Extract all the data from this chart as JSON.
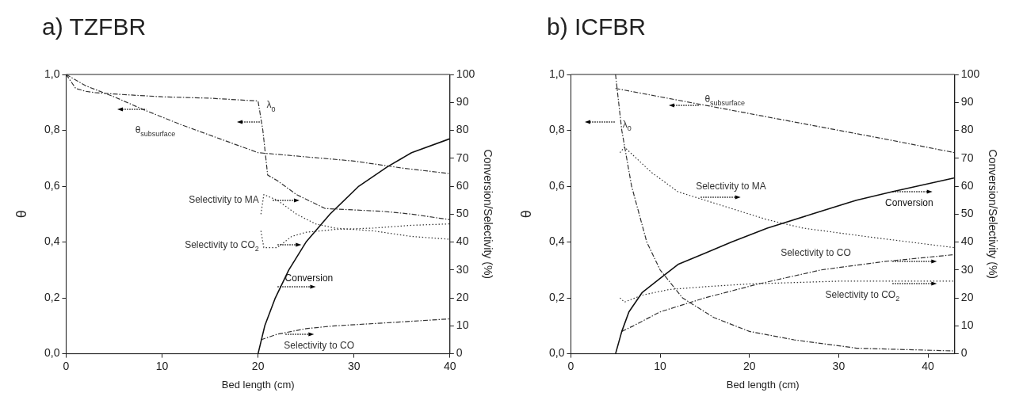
{
  "chart_data": [
    {
      "type": "line",
      "title": "a) TZFBR",
      "xlabel": "Bed length (cm)",
      "ylabel": "θ",
      "y2label": "Conversion/Selectivity (%)",
      "xlim": [
        0,
        40
      ],
      "xticks": [
        0,
        10,
        20,
        30,
        40
      ],
      "ylim": [
        0,
        1
      ],
      "yticks": [
        {
          "value": 0,
          "label": "0,0"
        },
        {
          "value": 0.2,
          "label": "0,2"
        },
        {
          "value": 0.4,
          "label": "0,4"
        },
        {
          "value": 0.6,
          "label": "0,6"
        },
        {
          "value": 0.8,
          "label": "0,8"
        },
        {
          "value": 1,
          "label": "1,0"
        }
      ],
      "y2lim": [
        0,
        100
      ],
      "y2ticks": [
        0,
        10,
        20,
        30,
        40,
        50,
        60,
        70,
        80,
        90,
        100
      ],
      "grid": false,
      "legend": false,
      "marker": "none",
      "series": [
        {
          "name": "θ$_{subsurface}$",
          "color": "#333333",
          "line_style": "dashed",
          "x": [
            0,
            2,
            5,
            8,
            12,
            16,
            20,
            25,
            30,
            35,
            40
          ],
          "values": [
            1.0,
            0.96,
            0.92,
            0.875,
            0.82,
            0.77,
            0.72,
            0.705,
            0.69,
            0.665,
            0.645
          ]
        },
        {
          "name": "λ$_{0}$",
          "color": "#333333",
          "line_style": "dashed",
          "x": [
            0,
            1,
            2,
            3,
            5,
            10,
            15,
            20,
            20.5,
            21,
            22,
            24,
            27,
            30,
            33,
            36,
            40
          ],
          "values": [
            1.0,
            0.95,
            0.94,
            0.935,
            0.93,
            0.92,
            0.915,
            0.905,
            0.8,
            0.64,
            0.62,
            0.57,
            0.52,
            0.515,
            0.51,
            0.5,
            0.48
          ]
        },
        {
          "name": "Selectivity to MA",
          "color": "#333333",
          "line_style": "dotted",
          "axis": "y2",
          "x": [
            20.3,
            20.6,
            22,
            24,
            26,
            28,
            32,
            36,
            40
          ],
          "values": [
            50,
            57,
            55,
            50,
            46.5,
            45,
            44,
            42,
            41
          ]
        },
        {
          "name": "Selectivity to CO$_{2}$",
          "color": "#333333",
          "line_style": "dotted",
          "axis": "y2",
          "x": [
            20.3,
            20.6,
            22,
            23.5,
            25,
            28,
            32,
            36,
            40
          ],
          "values": [
            44,
            38,
            38,
            42,
            43.5,
            44.5,
            45,
            46,
            46.5
          ]
        },
        {
          "name": "Conversion",
          "color": "#111111",
          "line_style": "solid",
          "axis": "y2",
          "x": [
            20,
            20.7,
            21.8,
            23.2,
            25,
            27.5,
            30.5,
            33.5,
            36,
            40
          ],
          "values": [
            0,
            10,
            20,
            30,
            40,
            50,
            60,
            67,
            72,
            77
          ]
        },
        {
          "name": "Selectivity to CO",
          "color": "#333333",
          "line_style": "dashed",
          "axis": "y2",
          "x": [
            20.3,
            22,
            25,
            28,
            33,
            40
          ],
          "values": [
            5,
            7,
            9,
            10,
            11,
            12.5
          ]
        }
      ]
    },
    {
      "type": "line",
      "title": "b) ICFBR",
      "xlabel": "Bed length (cm)",
      "ylabel": "θ",
      "y2label": "Conversion/Selectivity (%)",
      "xlim": [
        0,
        43
      ],
      "xticks": [
        0,
        10,
        20,
        30,
        40
      ],
      "ylim": [
        0,
        1
      ],
      "yticks": [
        {
          "value": 0,
          "label": "0,0"
        },
        {
          "value": 0.2,
          "label": "0,2"
        },
        {
          "value": 0.4,
          "label": "0,4"
        },
        {
          "value": 0.6,
          "label": "0,6"
        },
        {
          "value": 0.8,
          "label": "0,8"
        },
        {
          "value": 1,
          "label": "1,0"
        }
      ],
      "y2lim": [
        0,
        100
      ],
      "y2ticks": [
        0,
        10,
        20,
        30,
        40,
        50,
        60,
        70,
        80,
        90,
        100
      ],
      "grid": false,
      "legend": false,
      "marker": "none",
      "series": [
        {
          "name": "θ$_{subsurface}$",
          "color": "#333333",
          "line_style": "dashed",
          "x": [
            5,
            10,
            15,
            20,
            25,
            30,
            35,
            43
          ],
          "values": [
            0.95,
            0.92,
            0.89,
            0.86,
            0.83,
            0.8,
            0.77,
            0.72
          ]
        },
        {
          "name": "λ$_{0}$",
          "color": "#333333",
          "line_style": "dashed",
          "x": [
            5,
            5.7,
            6.8,
            8.5,
            10,
            12.5,
            16,
            20,
            25,
            32,
            43
          ],
          "values": [
            1.0,
            0.8,
            0.6,
            0.4,
            0.3,
            0.2,
            0.13,
            0.08,
            0.05,
            0.02,
            0.01
          ]
        },
        {
          "name": "Selectivity to MA",
          "color": "#333333",
          "line_style": "dotted",
          "axis": "y2",
          "x": [
            5.5,
            6,
            9,
            12,
            17,
            22,
            26,
            33,
            43
          ],
          "values": [
            72,
            74,
            65,
            58,
            53,
            48,
            45,
            42,
            38
          ]
        },
        {
          "name": "Conversion",
          "color": "#111111",
          "line_style": "solid",
          "axis": "y2",
          "x": [
            5,
            5.7,
            6.5,
            8,
            10,
            12,
            15,
            18,
            22,
            27,
            32,
            36,
            43
          ],
          "values": [
            0,
            8,
            15,
            22,
            27,
            32,
            36,
            40,
            45,
            50,
            55,
            58,
            63
          ]
        },
        {
          "name": "Selectivity to CO",
          "color": "#333333",
          "line_style": "dashed",
          "axis": "y2",
          "x": [
            5.7,
            7,
            10,
            15,
            21,
            28,
            35,
            43
          ],
          "values": [
            8,
            10,
            15,
            20,
            25,
            30,
            33,
            35.5
          ]
        },
        {
          "name": "Selectivity to CO$_{2}$",
          "color": "#333333",
          "line_style": "dotted",
          "axis": "y2",
          "x": [
            5.5,
            6,
            8,
            11,
            15,
            20,
            30,
            43
          ],
          "values": [
            20,
            18.5,
            21,
            23,
            24,
            25,
            26,
            26
          ]
        }
      ]
    }
  ]
}
